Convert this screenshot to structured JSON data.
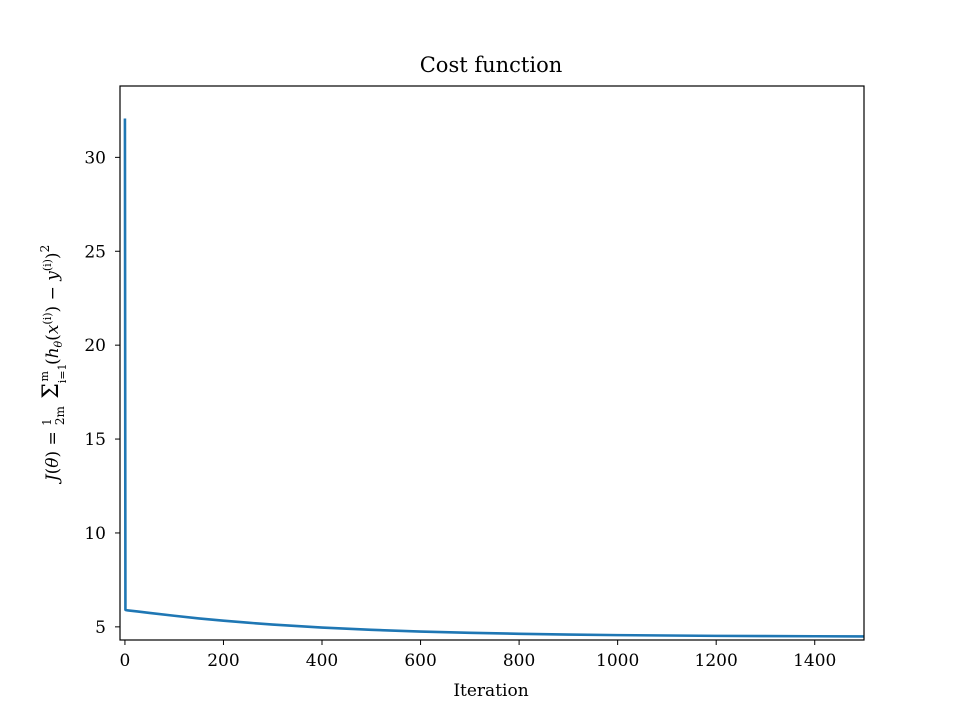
{
  "chart_data": {
    "type": "line",
    "title": "Cost function",
    "xlabel": "Iteration",
    "ylabel": "J(θ) = (1/2m) Σ_{i=1}^{m} (h_θ(x^(i)) − y^(i))^2",
    "xlim": [
      -10,
      1500
    ],
    "ylim": [
      4.3,
      33.8
    ],
    "x_ticks": [
      0,
      200,
      400,
      600,
      800,
      1000,
      1200,
      1400
    ],
    "y_ticks": [
      5,
      10,
      15,
      20,
      25,
      30
    ],
    "grid": false,
    "legend": "none",
    "series": [
      {
        "color": "#1f77b4",
        "x": [
          0,
          1,
          2,
          25,
          50,
          100,
          150,
          200,
          250,
          300,
          400,
          500,
          600,
          700,
          800,
          900,
          1000,
          1100,
          1200,
          1300,
          1400,
          1500
        ],
        "values": [
          32.07,
          5.91,
          5.89,
          5.82,
          5.74,
          5.59,
          5.45,
          5.33,
          5.22,
          5.12,
          4.96,
          4.84,
          4.75,
          4.68,
          4.63,
          4.59,
          4.56,
          4.54,
          4.52,
          4.51,
          4.5,
          4.49
        ]
      }
    ]
  }
}
